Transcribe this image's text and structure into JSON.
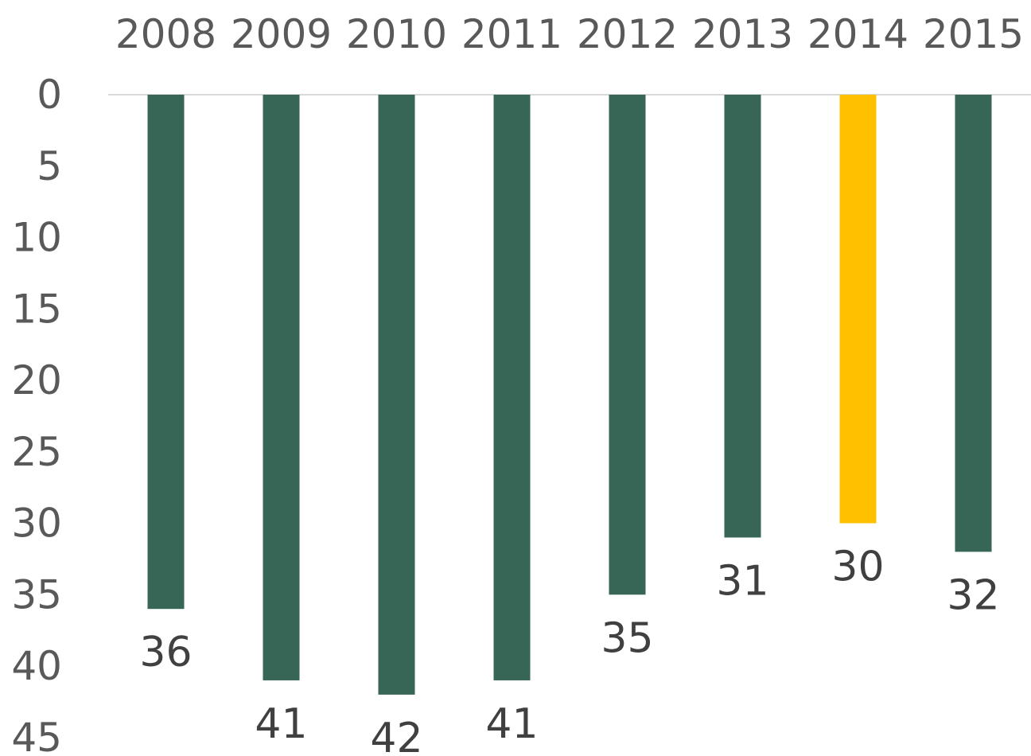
{
  "chart_data": {
    "type": "bar",
    "orientation": "vertical",
    "y_axis_reversed": true,
    "x_axis_position": "top",
    "categories": [
      "2008",
      "2009",
      "2010",
      "2011",
      "2012",
      "2013",
      "2014",
      "2015"
    ],
    "values": [
      36,
      41,
      42,
      41,
      35,
      31,
      30,
      32
    ],
    "data_labels": [
      "36",
      "41",
      "42",
      "41",
      "35",
      "31",
      "30",
      "32"
    ],
    "title": "",
    "xlabel": "",
    "ylabel": "",
    "ylim": [
      0,
      45
    ],
    "yticks": [
      0,
      5,
      10,
      15,
      20,
      25,
      30,
      35,
      40,
      45
    ],
    "ytick_labels": [
      "0",
      "5",
      "10",
      "15",
      "20",
      "25",
      "30",
      "35",
      "40",
      "45"
    ],
    "grid": false,
    "colors": {
      "bar": "#376656",
      "highlight_bar": "#FFC000",
      "axis_line": "#D9D9D9",
      "tick_text": "#595959",
      "label_text": "#404040"
    },
    "highlight_category": "2014"
  }
}
